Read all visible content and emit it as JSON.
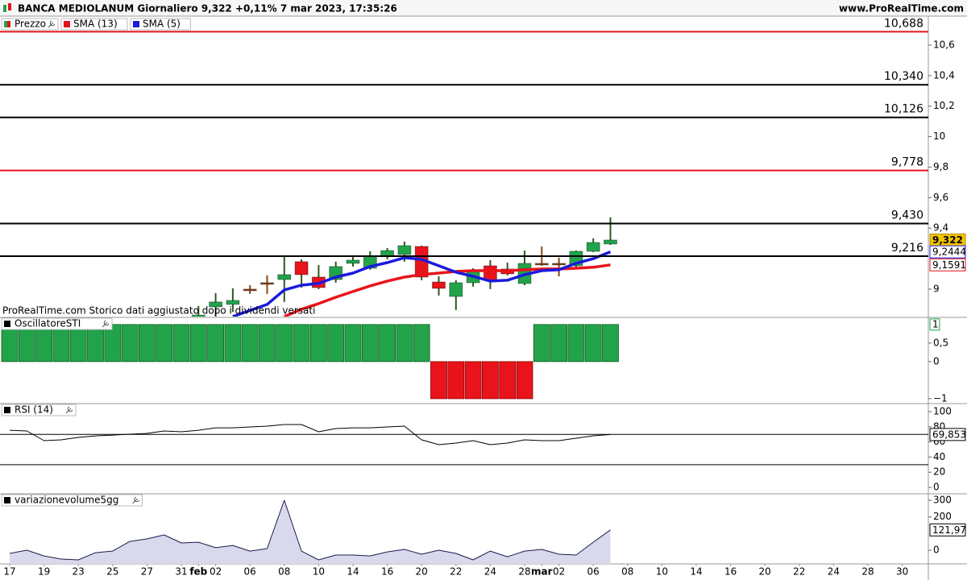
{
  "header": {
    "title": "BANCA MEDIOLANUM Giornaliero 9,322 +0,11% 7 mar 2023, 17:35:26",
    "site": "www.ProRealTime.com"
  },
  "chart_data": [
    {
      "type": "candlestick",
      "note": "ProRealTime.com  Storico dati aggiustato dopo i dividendi versati",
      "categories": [
        "17",
        null,
        "19",
        null,
        "23",
        null,
        "25",
        null,
        "27",
        null,
        "31",
        "feb",
        "02",
        null,
        "06",
        null,
        "08",
        null,
        "10",
        null,
        "14",
        null,
        "16",
        null,
        "20",
        null,
        "22",
        null,
        "24",
        null,
        "28",
        "mar",
        "02",
        null,
        "06",
        null,
        "08",
        null,
        "10",
        null,
        "14",
        null,
        "16",
        null,
        "20",
        null,
        "22",
        null,
        "24",
        null,
        "28",
        null,
        "30",
        null
      ],
      "candles": {
        "name": "Prezzo",
        "up_color": "#22a34a",
        "down_color": "#e8131b",
        "doji_color": "#8b4513",
        "open": [
          null,
          null,
          null,
          null,
          null,
          null,
          null,
          null,
          null,
          null,
          null,
          8.8,
          8.884,
          8.9,
          9.0,
          9.042,
          9.063,
          9.18,
          9.079,
          9.063,
          9.169,
          9.137,
          9.216,
          9.227,
          9.28,
          9.047,
          8.952,
          9.042,
          9.153,
          9.132,
          9.037,
          9.169,
          9.169,
          9.153,
          9.248,
          9.296,
          null,
          null,
          null,
          null,
          null,
          null,
          null,
          null,
          null,
          null,
          null,
          null,
          null,
          null,
          null,
          null,
          null,
          null
        ],
        "high": [
          null,
          null,
          null,
          null,
          null,
          null,
          null,
          null,
          null,
          null,
          null,
          8.89,
          8.974,
          9.005,
          9.026,
          9.09,
          9.211,
          9.195,
          9.158,
          9.18,
          9.222,
          9.248,
          9.269,
          9.311,
          9.285,
          9.084,
          9.058,
          9.137,
          9.19,
          9.174,
          9.253,
          9.28,
          9.206,
          9.253,
          9.333,
          9.47,
          null,
          null,
          null,
          null,
          null,
          null,
          null,
          null,
          null,
          null,
          null,
          null,
          null,
          null,
          null,
          null,
          null,
          null
        ],
        "low": [
          null,
          null,
          null,
          null,
          null,
          null,
          null,
          null,
          null,
          null,
          null,
          8.75,
          8.82,
          8.85,
          8.968,
          8.968,
          8.916,
          9.01,
          9.0,
          9.042,
          9.148,
          9.127,
          9.195,
          9.18,
          9.058,
          8.958,
          8.863,
          9.016,
          9.0,
          9.09,
          9.026,
          9.153,
          9.084,
          9.137,
          9.243,
          9.29,
          null,
          null,
          null,
          null,
          null,
          null,
          null,
          null,
          null,
          null,
          null,
          null,
          null,
          null,
          null,
          null,
          null,
          null
        ],
        "close": [
          null,
          null,
          null,
          null,
          null,
          null,
          null,
          null,
          null,
          null,
          null,
          8.83,
          8.916,
          8.926,
          9.0,
          9.042,
          9.095,
          9.095,
          9.01,
          9.148,
          9.19,
          9.216,
          9.253,
          9.285,
          9.079,
          9.005,
          9.042,
          9.121,
          9.058,
          9.1,
          9.169,
          9.169,
          9.169,
          9.248,
          9.306,
          9.322,
          null,
          null,
          null,
          null,
          null,
          null,
          null,
          null,
          null,
          null,
          null,
          null,
          null,
          null,
          null,
          null,
          null,
          null
        ],
        "close_labels": [
          null,
          null,
          null,
          null,
          null,
          null,
          null,
          null,
          null,
          null,
          null,
          null,
          null,
          null,
          null,
          null,
          null,
          null,
          null,
          null,
          null,
          null,
          null,
          null,
          null,
          null,
          null,
          null,
          null,
          null,
          null,
          null,
          null,
          null,
          null,
          "9,322",
          null,
          null,
          null,
          null,
          null,
          null,
          null,
          null,
          null,
          null,
          null,
          null,
          null,
          null,
          null,
          null,
          null,
          null
        ]
      },
      "series": [
        {
          "name": "SMA (13)",
          "color": "#e8131b",
          "values": [
            null,
            null,
            null,
            null,
            null,
            null,
            null,
            null,
            null,
            null,
            null,
            null,
            null,
            null,
            null,
            null,
            8.82,
            8.868,
            8.905,
            8.947,
            8.984,
            9.021,
            9.053,
            9.079,
            9.095,
            9.105,
            9.116,
            9.121,
            9.121,
            9.121,
            9.127,
            9.132,
            9.132,
            9.137,
            9.143,
            9.1591,
            null,
            null,
            null,
            null,
            null,
            null,
            null,
            null,
            null,
            null,
            null,
            null,
            null,
            null,
            null,
            null,
            null,
            null
          ],
          "value_labels": [
            null,
            null,
            null,
            null,
            null,
            null,
            null,
            null,
            null,
            null,
            null,
            null,
            null,
            null,
            null,
            null,
            null,
            null,
            null,
            null,
            null,
            null,
            null,
            null,
            null,
            null,
            null,
            null,
            null,
            null,
            null,
            null,
            null,
            null,
            null,
            "9,1591",
            null,
            null,
            null,
            null,
            null,
            null,
            null,
            null,
            null,
            null,
            null,
            null,
            null,
            null,
            null,
            null,
            null,
            null
          ]
        },
        {
          "name": "SMA (5)",
          "color": "#1a1adb",
          "values": [
            null,
            null,
            null,
            null,
            null,
            null,
            null,
            null,
            null,
            null,
            null,
            null,
            null,
            8.82,
            8.86,
            8.9,
            8.995,
            9.026,
            9.037,
            9.079,
            9.105,
            9.148,
            9.174,
            9.206,
            9.195,
            9.153,
            9.111,
            9.084,
            9.053,
            9.058,
            9.095,
            9.121,
            9.127,
            9.169,
            9.2,
            9.2444,
            null,
            null,
            null,
            null,
            null,
            null,
            null,
            null,
            null,
            null,
            null,
            null,
            null,
            null,
            null,
            null,
            null,
            null
          ],
          "value_labels": [
            null,
            null,
            null,
            null,
            null,
            null,
            null,
            null,
            null,
            null,
            null,
            null,
            null,
            null,
            null,
            null,
            null,
            null,
            null,
            null,
            null,
            null,
            null,
            null,
            null,
            null,
            null,
            null,
            null,
            null,
            null,
            null,
            null,
            null,
            null,
            "9,2444",
            null,
            null,
            null,
            null,
            null,
            null,
            null,
            null,
            null,
            null,
            null,
            null,
            null,
            null,
            null,
            null,
            null,
            null
          ]
        }
      ],
      "levels": [
        {
          "value": 10.688,
          "label": "10,688",
          "color": "#e8131b"
        },
        {
          "value": 10.34,
          "label": "10,340",
          "color": "#000000"
        },
        {
          "value": 10.126,
          "label": "10,126",
          "color": "#000000"
        },
        {
          "value": 9.778,
          "label": "9,778",
          "color": "#e8131b"
        },
        {
          "value": 9.43,
          "label": "9,430",
          "color": "#000000"
        },
        {
          "value": 9.216,
          "label": "9,216",
          "color": "#000000"
        }
      ],
      "ylim": [
        8.82,
        10.79
      ],
      "yticks": [
        {
          "value": 10.6,
          "label": "10,6"
        },
        {
          "value": 10.4,
          "label": "10,4"
        },
        {
          "value": 10.2,
          "label": "10,2"
        },
        10,
        {
          "value": 9.8,
          "label": "9,8"
        },
        {
          "value": 9.6,
          "label": "9,6"
        },
        {
          "value": 9.4,
          "label": "9,4"
        },
        9
      ]
    },
    {
      "type": "bar",
      "title": "OscillatoreSTI",
      "up_color": "#22a34a",
      "down_color": "#e8131b",
      "values": [
        1,
        1,
        1,
        1,
        1,
        1,
        1,
        1,
        1,
        1,
        1,
        1,
        1,
        1,
        1,
        1,
        1,
        1,
        1,
        1,
        1,
        1,
        1,
        1,
        1,
        -1,
        -1,
        -1,
        -1,
        -1,
        -1,
        1,
        1,
        1,
        1,
        1,
        null,
        null,
        null,
        null,
        null,
        null,
        null,
        null,
        null,
        null,
        null,
        null,
        null,
        null,
        null,
        null,
        null,
        null
      ],
      "ylim": [
        -1.11,
        1.17
      ],
      "yticks": [
        {
          "value": 0.5,
          "label": "0,5"
        },
        0,
        {
          "value": -1,
          "label": "−1"
        }
      ]
    },
    {
      "type": "line",
      "title": "RSI (14)",
      "color": "#000000",
      "values": [
        75.5,
        74.5,
        61.7,
        62.8,
        66,
        68,
        69.1,
        70.2,
        71.3,
        74.5,
        73.4,
        75.5,
        78.7,
        78.7,
        79.8,
        80.9,
        83,
        83,
        73.4,
        77.7,
        78.7,
        78.7,
        79.8,
        80.9,
        62.8,
        56.4,
        58.5,
        61.7,
        56.4,
        58.5,
        62.8,
        61.7,
        61.7,
        64.9,
        68.1,
        69.853,
        null,
        null,
        null,
        null,
        null,
        null,
        null,
        null,
        null,
        null,
        null,
        null,
        null,
        null,
        null,
        null,
        null,
        null
      ],
      "value_labels": [
        null,
        null,
        null,
        null,
        null,
        null,
        null,
        null,
        null,
        null,
        null,
        null,
        null,
        null,
        null,
        null,
        null,
        null,
        null,
        null,
        null,
        null,
        null,
        null,
        null,
        null,
        null,
        null,
        null,
        null,
        null,
        null,
        null,
        null,
        null,
        "69,853",
        null,
        null,
        null,
        null,
        null,
        null,
        null,
        null,
        null,
        null,
        null,
        null,
        null,
        null,
        null,
        null,
        null,
        null
      ],
      "levels": [
        70,
        30
      ],
      "ylim": [
        -7.4,
        109.6
      ],
      "yticks": [
        100,
        80,
        60,
        40,
        20,
        0
      ]
    },
    {
      "type": "area",
      "title": "variazionevolume5gg",
      "color": "#1c1c4a",
      "fill": "#d9d9ee",
      "values": [
        -19,
        0,
        -34,
        -53,
        -58,
        -15,
        -5,
        53,
        68,
        92,
        44,
        48,
        15,
        29,
        -5,
        10,
        300,
        -5,
        -58,
        -29,
        -29,
        -34,
        -10,
        5,
        -24,
        0,
        -19,
        -58,
        -5,
        -39,
        -5,
        5,
        -24,
        -29,
        48,
        121.97,
        null,
        null,
        null,
        null,
        null,
        null,
        null,
        null,
        null,
        null,
        null,
        null,
        null,
        null,
        null,
        null,
        null,
        null
      ],
      "value_labels": [
        null,
        null,
        null,
        null,
        null,
        null,
        null,
        null,
        null,
        null,
        null,
        null,
        null,
        null,
        null,
        null,
        null,
        null,
        null,
        null,
        null,
        null,
        null,
        null,
        null,
        null,
        null,
        null,
        null,
        null,
        null,
        null,
        null,
        null,
        null,
        "121,97",
        null,
        null,
        null,
        null,
        null,
        null,
        null,
        null,
        null,
        null,
        null,
        null,
        null,
        null,
        null,
        null,
        null,
        null
      ],
      "ylim": [
        -82,
        334
      ],
      "yticks": [
        300,
        200,
        0
      ]
    }
  ]
}
